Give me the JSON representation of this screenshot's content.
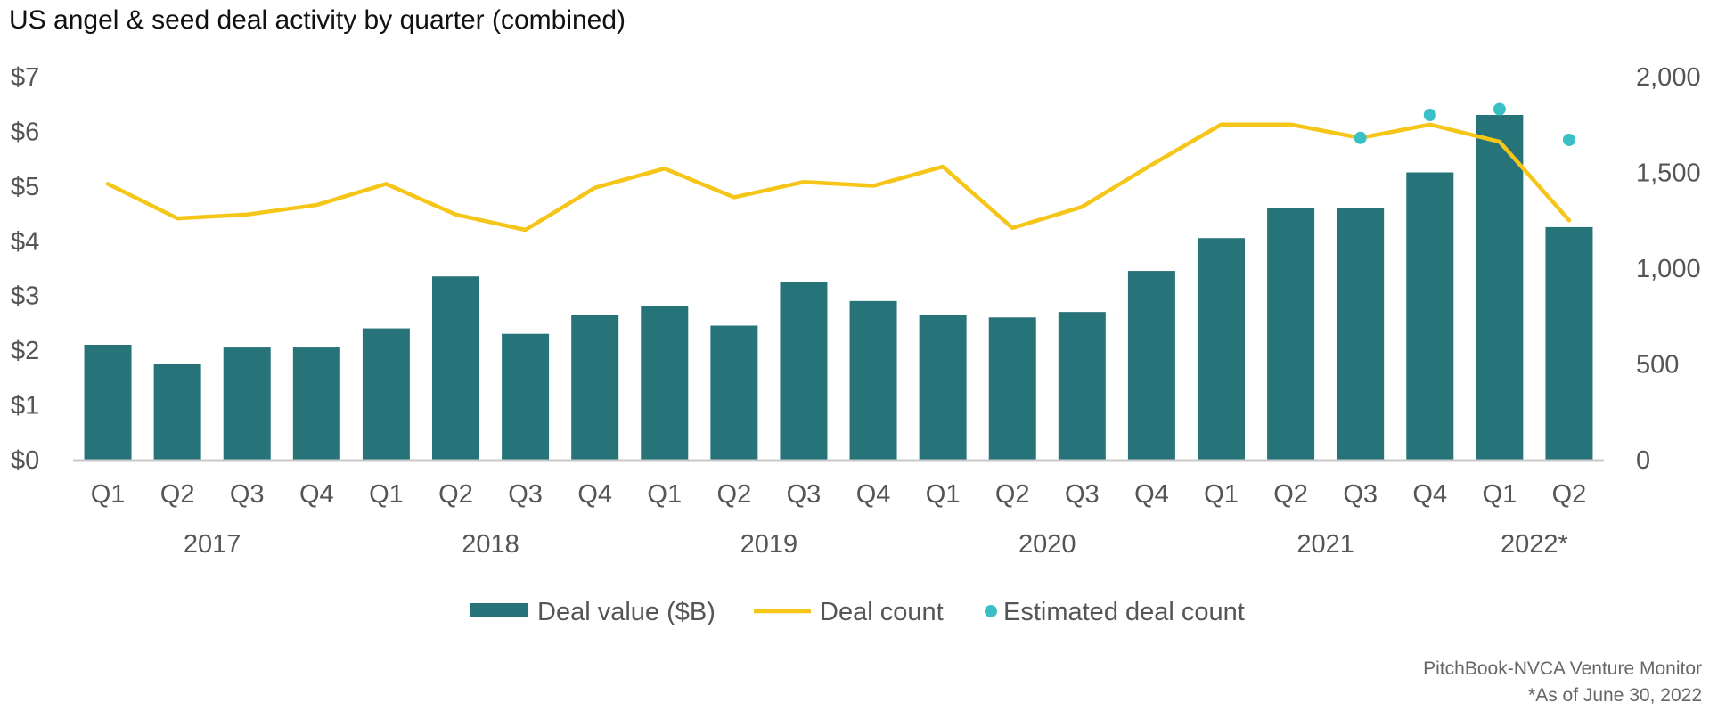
{
  "chart_data": {
    "type": "bar",
    "title": "US angel & seed deal activity by quarter (combined)",
    "categories": [
      "Q1",
      "Q2",
      "Q3",
      "Q4",
      "Q1",
      "Q2",
      "Q3",
      "Q4",
      "Q1",
      "Q2",
      "Q3",
      "Q4",
      "Q1",
      "Q2",
      "Q3",
      "Q4",
      "Q1",
      "Q2",
      "Q3",
      "Q4",
      "Q1",
      "Q2"
    ],
    "years": [
      {
        "label": "2017",
        "quarters": [
          0,
          3
        ]
      },
      {
        "label": "2018",
        "quarters": [
          4,
          7
        ]
      },
      {
        "label": "2019",
        "quarters": [
          8,
          11
        ]
      },
      {
        "label": "2020",
        "quarters": [
          12,
          15
        ]
      },
      {
        "label": "2021",
        "quarters": [
          16,
          19
        ]
      },
      {
        "label": "2022*",
        "quarters": [
          20,
          21
        ]
      }
    ],
    "series": [
      {
        "name": "Deal value ($B)",
        "type": "bar",
        "axis": "left",
        "color": "#27737a",
        "values": [
          2.1,
          1.75,
          2.05,
          2.05,
          2.4,
          3.35,
          2.3,
          2.65,
          2.8,
          2.45,
          3.25,
          2.9,
          2.65,
          2.6,
          2.7,
          3.45,
          4.05,
          4.6,
          4.6,
          5.25,
          6.3,
          4.25
        ]
      },
      {
        "name": "Deal count",
        "type": "line",
        "axis": "right",
        "color": "#f5c518",
        "values": [
          1440,
          1260,
          1280,
          1330,
          1440,
          1280,
          1200,
          1420,
          1520,
          1370,
          1450,
          1430,
          1530,
          1210,
          1320,
          1540,
          1750,
          1750,
          1680,
          1750,
          1660,
          1250
        ]
      },
      {
        "name": "Estimated deal count",
        "type": "scatter",
        "axis": "right",
        "color": "#3bbfc6",
        "points": [
          {
            "index": 18,
            "value": 1680
          },
          {
            "index": 19,
            "value": 1800
          },
          {
            "index": 20,
            "value": 1830
          },
          {
            "index": 21,
            "value": 1670
          }
        ]
      }
    ],
    "y_left": {
      "min": 0,
      "max": 7,
      "ticks": [
        "$0",
        "$1",
        "$2",
        "$3",
        "$4",
        "$5",
        "$6",
        "$7"
      ]
    },
    "y_right": {
      "min": 0,
      "max": 2000,
      "ticks": [
        "0",
        "500",
        "1,000",
        "1,500",
        "2,000"
      ]
    },
    "legend_position": "bottom",
    "grid": false,
    "source": [
      "PitchBook-NVCA Venture Monitor",
      "*As of June 30, 2022"
    ]
  }
}
